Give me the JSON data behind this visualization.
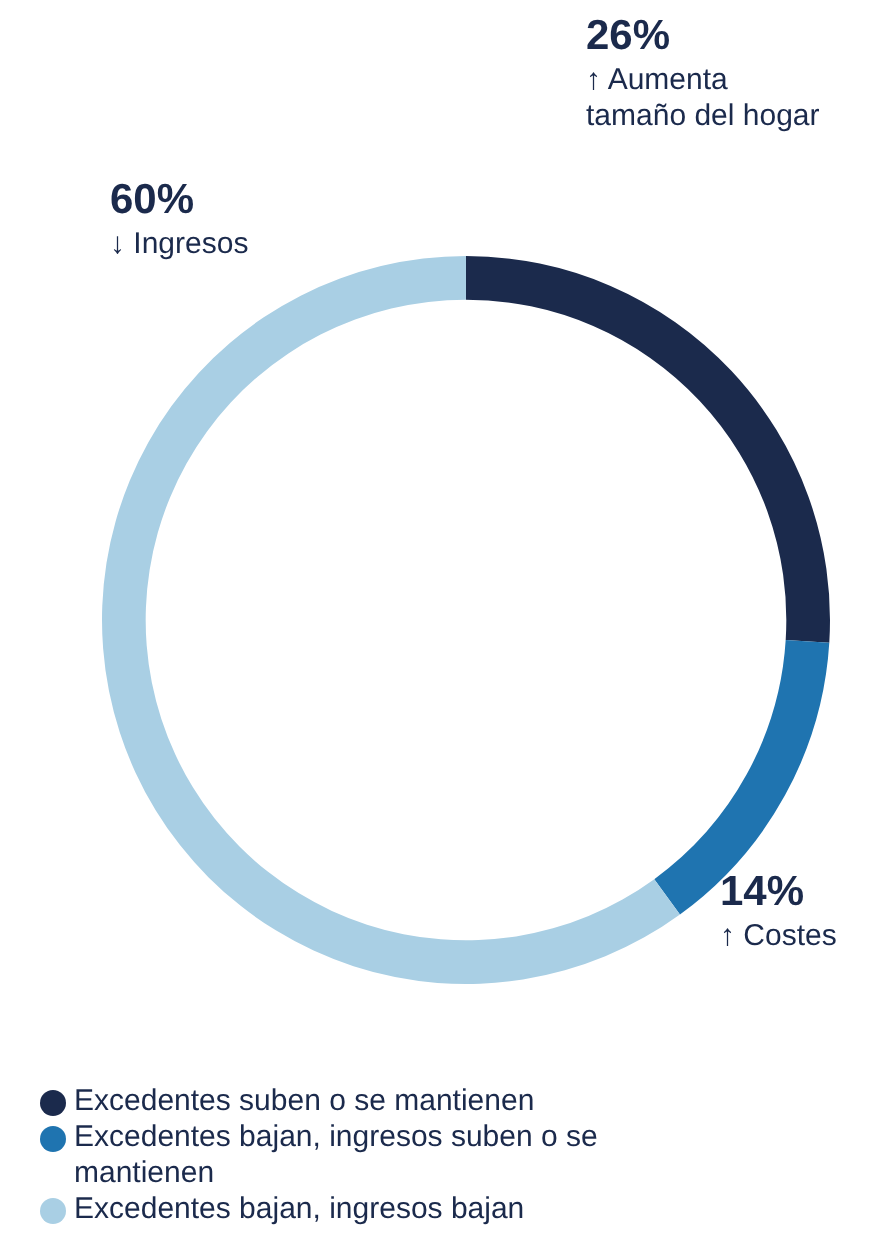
{
  "chart_data": {
    "type": "donut",
    "categories": [
      "Excedentes suben o se mantienen",
      "Excedentes bajan, ingresos suben o se mantienen",
      "Excedentes bajan, ingresos bajan"
    ],
    "values": [
      26,
      14,
      60
    ],
    "colors": [
      "#1b2a4c",
      "#1f74b0",
      "#a9cfe4"
    ],
    "value_labels": [
      "26%",
      "14%",
      "60%"
    ],
    "annotations": [
      "↑ Aumenta tamaño del hogar",
      "↑ Costes",
      "↓ Ingresos"
    ],
    "legend": "bottom"
  }
}
